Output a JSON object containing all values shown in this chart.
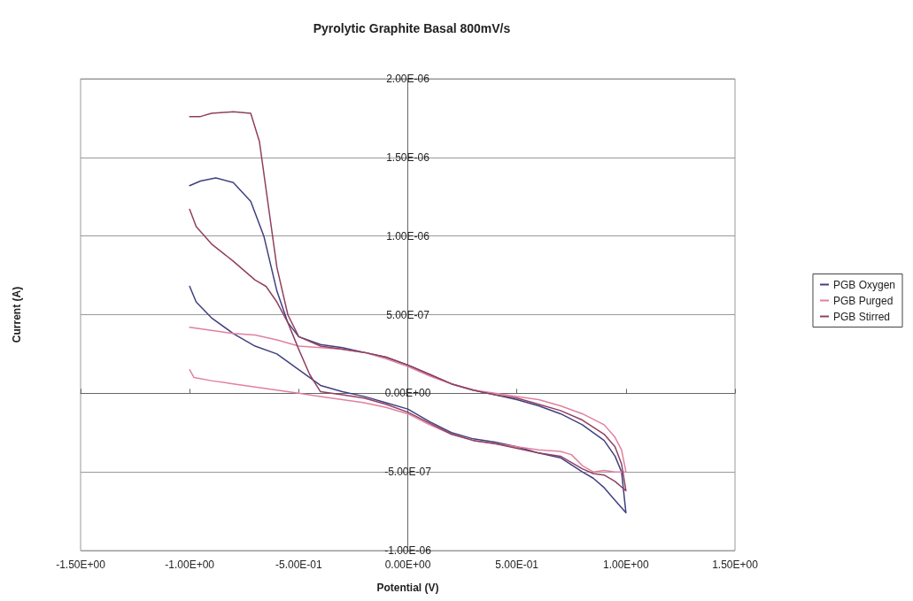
{
  "chart_data": {
    "type": "line",
    "title": "Pyrolytic Graphite Basal 800mV/s",
    "xlabel": "Potential (V)",
    "ylabel": "Current (A)",
    "xlim": [
      -1.5,
      1.5
    ],
    "xticks": [
      {
        "value": -1.5,
        "label": "-1.50E+00"
      },
      {
        "value": -1.0,
        "label": "-1.00E+00"
      },
      {
        "value": -0.5,
        "label": "-5.00E-01"
      },
      {
        "value": 0,
        "label": "0.00E+00"
      },
      {
        "value": 0.5,
        "label": "5.00E-01"
      },
      {
        "value": 1.0,
        "label": "1.00E+00"
      },
      {
        "value": 1.5,
        "label": "1.50E+00"
      }
    ],
    "ylim": [
      -1e-06,
      2e-06
    ],
    "yticks": [
      {
        "value": -1e-06,
        "label": "-1.00E-06"
      },
      {
        "value": -5e-07,
        "label": "-5.00E-07"
      },
      {
        "value": 0,
        "label": "0.00E+00"
      },
      {
        "value": 5e-07,
        "label": "5.00E-07"
      },
      {
        "value": 1e-06,
        "label": "1.00E-06"
      },
      {
        "value": 1.5e-06,
        "label": "1.50E-06"
      },
      {
        "value": 2e-06,
        "label": "2.00E-06"
      }
    ],
    "grid": "y",
    "legend": "right",
    "marker": "none",
    "line_style": "solid",
    "series": [
      {
        "name": "PGB Oxygen",
        "color": "#404080",
        "x": [
          -1.0,
          -0.95,
          -0.88,
          -0.8,
          -0.72,
          -0.66,
          -0.6,
          -0.55,
          -0.5,
          -0.4,
          -0.3,
          -0.2,
          -0.1,
          0,
          0.1,
          0.2,
          0.3,
          0.4,
          0.5,
          0.6,
          0.7,
          0.8,
          0.9,
          0.95,
          0.98,
          1.0,
          0.95,
          0.9,
          0.85,
          0.8,
          0.7,
          0.6,
          0.5,
          0.4,
          0.3,
          0.2,
          0.1,
          0,
          -0.1,
          -0.2,
          -0.3,
          -0.4,
          -0.5,
          -0.6,
          -0.7,
          -0.8,
          -0.9,
          -0.97,
          -1.0
        ],
        "values": [
          1.32e-06,
          1.35e-06,
          1.37e-06,
          1.34e-06,
          1.22e-06,
          1e-06,
          6.5e-07,
          4.5e-07,
          3.6e-07,
          3.1e-07,
          2.9e-07,
          2.6e-07,
          2.3e-07,
          1.8e-07,
          1.2e-07,
          6e-08,
          2e-08,
          -1e-08,
          -4e-08,
          -8e-08,
          -1.3e-07,
          -2e-07,
          -3e-07,
          -4e-07,
          -5e-07,
          -7.6e-07,
          -6.8e-07,
          -6e-07,
          -5.4e-07,
          -5e-07,
          -4.1e-07,
          -3.8e-07,
          -3.4e-07,
          -3.1e-07,
          -2.9e-07,
          -2.5e-07,
          -1.8e-07,
          -1e-07,
          -6e-08,
          -2e-08,
          1e-08,
          5e-08,
          1.5e-07,
          2.5e-07,
          3e-07,
          3.8e-07,
          4.8e-07,
          5.8e-07,
          6.8e-07
        ]
      },
      {
        "name": "PGB Purged",
        "color": "#e080a0",
        "x": [
          -1.0,
          -0.9,
          -0.8,
          -0.7,
          -0.6,
          -0.5,
          -0.4,
          -0.3,
          -0.2,
          -0.1,
          0,
          0.1,
          0.2,
          0.3,
          0.4,
          0.5,
          0.6,
          0.7,
          0.8,
          0.9,
          0.95,
          0.98,
          1.0,
          0.95,
          0.9,
          0.85,
          0.8,
          0.75,
          0.7,
          0.6,
          0.5,
          0.4,
          0.3,
          0.2,
          0.1,
          0,
          -0.1,
          -0.2,
          -0.3,
          -0.4,
          -0.5,
          -0.6,
          -0.7,
          -0.8,
          -0.9,
          -0.98,
          -1.0
        ],
        "values": [
          4.2e-07,
          4e-07,
          3.8e-07,
          3.7e-07,
          3.4e-07,
          3e-07,
          2.9e-07,
          2.8e-07,
          2.6e-07,
          2.2e-07,
          1.7e-07,
          1.1e-07,
          6e-08,
          2e-08,
          0,
          -2e-08,
          -4e-08,
          -8e-08,
          -1.3e-07,
          -2e-07,
          -2.8e-07,
          -3.6e-07,
          -5e-07,
          -5e-07,
          -4.9e-07,
          -5e-07,
          -4.6e-07,
          -3.9e-07,
          -3.7e-07,
          -3.6e-07,
          -3.4e-07,
          -3.2e-07,
          -3e-07,
          -2.6e-07,
          -2e-07,
          -1.3e-07,
          -9e-08,
          -6e-08,
          -4e-08,
          -2e-08,
          0,
          2e-08,
          4e-08,
          6e-08,
          8e-08,
          1e-07,
          1.5e-07
        ]
      },
      {
        "name": "PGB Stirred",
        "color": "#904060",
        "x": [
          -1.0,
          -0.95,
          -0.9,
          -0.8,
          -0.72,
          -0.68,
          -0.64,
          -0.6,
          -0.55,
          -0.5,
          -0.4,
          -0.3,
          -0.2,
          -0.1,
          0,
          0.1,
          0.2,
          0.3,
          0.4,
          0.5,
          0.6,
          0.7,
          0.8,
          0.9,
          0.95,
          0.98,
          1.0,
          0.95,
          0.9,
          0.85,
          0.8,
          0.7,
          0.6,
          0.5,
          0.4,
          0.3,
          0.2,
          0.1,
          0,
          -0.1,
          -0.2,
          -0.3,
          -0.4,
          -0.45,
          -0.5,
          -0.55,
          -0.6,
          -0.65,
          -0.7,
          -0.8,
          -0.9,
          -0.97,
          -1.0
        ],
        "values": [
          1.76e-06,
          1.76e-06,
          1.78e-06,
          1.79e-06,
          1.78e-06,
          1.6e-06,
          1.2e-06,
          8e-07,
          5e-07,
          3.6e-07,
          3e-07,
          2.8e-07,
          2.6e-07,
          2.3e-07,
          1.8e-07,
          1.2e-07,
          6e-08,
          2e-08,
          -1e-08,
          -3e-08,
          -7e-08,
          -1.1e-07,
          -1.7e-07,
          -2.6e-07,
          -3.4e-07,
          -4.5e-07,
          -6.2e-07,
          -5.6e-07,
          -5.2e-07,
          -5.1e-07,
          -4.8e-07,
          -4e-07,
          -3.8e-07,
          -3.5e-07,
          -3.2e-07,
          -3e-07,
          -2.6e-07,
          -1.9e-07,
          -1.2e-07,
          -7e-08,
          -3e-08,
          -1e-08,
          1e-08,
          1.2e-07,
          2.8e-07,
          4.5e-07,
          5.8e-07,
          6.8e-07,
          7.2e-07,
          8.4e-07,
          9.5e-07,
          1.06e-06,
          1.17e-06
        ]
      }
    ]
  }
}
